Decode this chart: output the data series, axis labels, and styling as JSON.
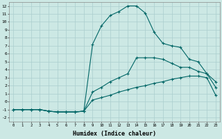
{
  "xlabel": "Humidex (Indice chaleur)",
  "bg_color": "#cce8e4",
  "grid_color": "#aacece",
  "line_color": "#006666",
  "xlim": [
    -0.5,
    23.5
  ],
  "ylim": [
    -2.5,
    12.5
  ],
  "xticks": [
    0,
    1,
    2,
    3,
    4,
    5,
    6,
    7,
    8,
    9,
    10,
    11,
    12,
    13,
    14,
    15,
    16,
    17,
    18,
    19,
    20,
    21,
    22,
    23
  ],
  "yticks": [
    -2,
    -1,
    0,
    1,
    2,
    3,
    4,
    5,
    6,
    7,
    8,
    9,
    10,
    11,
    12
  ],
  "series1_x": [
    0,
    1,
    2,
    3,
    4,
    5,
    6,
    7,
    8,
    9,
    10,
    11,
    12,
    13,
    14,
    15,
    16,
    17,
    18,
    19,
    20,
    21,
    22,
    23
  ],
  "series1_y": [
    -1.0,
    -1.0,
    -1.0,
    -1.0,
    -1.2,
    -1.3,
    -1.3,
    -1.3,
    -1.2,
    7.2,
    9.5,
    10.8,
    11.3,
    12.0,
    12.0,
    11.1,
    8.7,
    7.3,
    7.0,
    6.8,
    5.3,
    5.0,
    3.5,
    2.5
  ],
  "series2_x": [
    0,
    1,
    2,
    3,
    4,
    5,
    6,
    7,
    8,
    9,
    10,
    11,
    12,
    13,
    14,
    15,
    16,
    17,
    18,
    19,
    20,
    21,
    22,
    23
  ],
  "series2_y": [
    -1.0,
    -1.0,
    -1.0,
    -1.0,
    -1.2,
    -1.3,
    -1.3,
    -1.3,
    -1.2,
    1.2,
    1.8,
    2.5,
    3.0,
    3.5,
    5.5,
    5.5,
    5.5,
    5.3,
    4.8,
    4.3,
    4.3,
    3.8,
    3.5,
    1.8
  ],
  "series3_x": [
    0,
    1,
    2,
    3,
    4,
    5,
    6,
    7,
    8,
    9,
    10,
    11,
    12,
    13,
    14,
    15,
    16,
    17,
    18,
    19,
    20,
    21,
    22,
    23
  ],
  "series3_y": [
    -1.0,
    -1.0,
    -1.0,
    -1.0,
    -1.2,
    -1.3,
    -1.3,
    -1.3,
    -1.2,
    0.2,
    0.5,
    0.8,
    1.2,
    1.5,
    1.8,
    2.0,
    2.3,
    2.5,
    2.8,
    3.0,
    3.2,
    3.2,
    3.0,
    0.8
  ]
}
